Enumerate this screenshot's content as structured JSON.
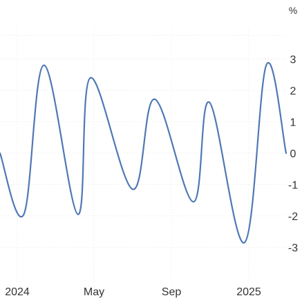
{
  "chart_data": {
    "type": "line",
    "unit_label": "%",
    "line_color": "#4f78b5",
    "x_ticks": [
      "2024",
      "May",
      "Sep",
      "2025"
    ],
    "y_ticks": [
      "3",
      "2",
      "1",
      "0",
      "-1",
      "-2",
      "-3"
    ],
    "ylim": [
      -3.5,
      3.5
    ],
    "grid": true,
    "series": [
      {
        "values": [
          {
            "x": "2023-11-15",
            "y": 0
          },
          {
            "x": "2023-12-25",
            "y": -1.95
          },
          {
            "x": "2024-01-28",
            "y": 2.8
          },
          {
            "x": "2024-03-25",
            "y": -1.95
          },
          {
            "x": "2024-04-15",
            "y": 2.4
          },
          {
            "x": "2024-06-25",
            "y": -1.15
          },
          {
            "x": "2024-08-01",
            "y": 1.72
          },
          {
            "x": "2024-10-05",
            "y": -1.55
          },
          {
            "x": "2024-11-01",
            "y": 1.62
          },
          {
            "x": "2024-12-30",
            "y": -2.85
          },
          {
            "x": "2025-02-05",
            "y": 2.82
          },
          {
            "x": "2025-03-10",
            "y": 0
          }
        ]
      }
    ]
  }
}
